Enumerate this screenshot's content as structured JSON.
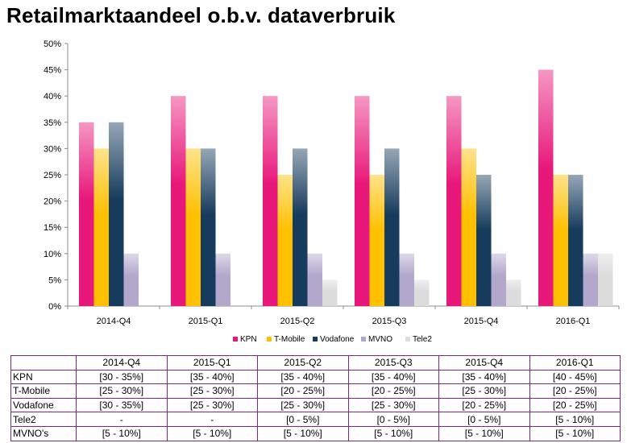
{
  "title": "Retailmarktaandeel o.b.v. dataverbruik",
  "chart_data": {
    "type": "bar",
    "title": "Retailmarktaandeel o.b.v. dataverbruik",
    "categories": [
      "2014-Q4",
      "2015-Q1",
      "2015-Q2",
      "2015-Q3",
      "2015-Q4",
      "2016-Q1"
    ],
    "y_ticks": [
      "0%",
      "5%",
      "10%",
      "15%",
      "20%",
      "25%",
      "30%",
      "35%",
      "40%",
      "45%",
      "50%"
    ],
    "ylim": [
      0,
      50
    ],
    "grid": false,
    "legend_position": "bottom",
    "series": [
      {
        "name": "KPN",
        "color": "#e8177a",
        "values": [
          35,
          40,
          40,
          40,
          40,
          45
        ]
      },
      {
        "name": "T-Mobile",
        "color": "#ffc000",
        "values": [
          30,
          30,
          25,
          25,
          30,
          25
        ]
      },
      {
        "name": "Vodafone",
        "color": "#163b5c",
        "values": [
          35,
          30,
          30,
          30,
          25,
          25
        ]
      },
      {
        "name": "MVNO",
        "color": "#b3a8cc",
        "values": [
          10,
          10,
          10,
          10,
          10,
          10
        ]
      },
      {
        "name": "Tele2",
        "color": "#dcdcdc",
        "values": [
          0,
          0,
          5,
          5,
          5,
          10
        ]
      }
    ]
  },
  "table": {
    "headers": [
      "",
      "2014-Q4",
      "2015-Q1",
      "2015-Q2",
      "2015-Q3",
      "2015-Q4",
      "2016-Q1"
    ],
    "rows": [
      {
        "label": "KPN",
        "cells": [
          "[30 - 35%]",
          "[35 - 40%]",
          "[35 - 40%]",
          "[35 - 40%]",
          "[35 - 40%]",
          "[40 - 45%]"
        ]
      },
      {
        "label": "T-Mobile",
        "cells": [
          "[25 - 30%]",
          "[25 - 30%]",
          "[20 - 25%]",
          "[20 - 25%]",
          "[25 - 30%]",
          "[20 - 25%]"
        ]
      },
      {
        "label": "Vodafone",
        "cells": [
          "[30 - 35%]",
          "[25 - 30%]",
          "[25 - 30%]",
          "[25 - 30%]",
          "[20 - 25%]",
          "[20 - 25%]"
        ]
      },
      {
        "label": "Tele2",
        "cells": [
          "-",
          "-",
          "[0 - 5%]",
          "[0 - 5%]",
          "[0 - 5%]",
          "[5 - 10%]"
        ]
      },
      {
        "label": "MVNO's",
        "cells": [
          "[5 - 10%]",
          "[5 - 10%]",
          "[5 - 10%]",
          "[5 - 10%]",
          "[5 - 10%]",
          "[5 - 10%]"
        ]
      }
    ]
  }
}
